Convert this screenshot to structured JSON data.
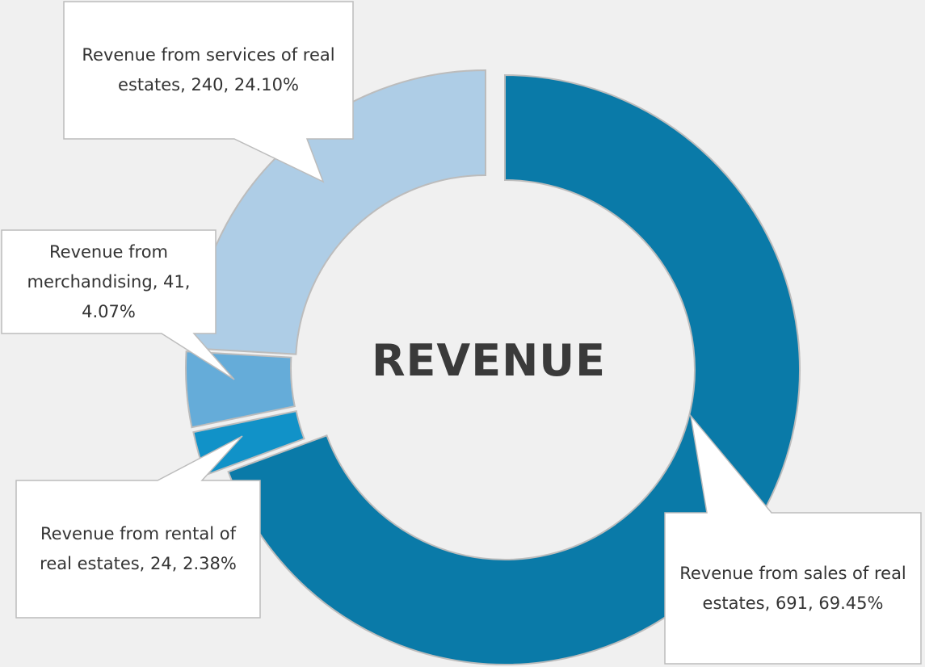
{
  "chart_data": {
    "type": "donut",
    "title": "REVENUE",
    "values": [
      691,
      24,
      41,
      240
    ],
    "value_labels": [
      "Revenue from sales of real estates, 691, 69.45%",
      "Revenue from rental of real estates, 24, 2.38%",
      "Revenue from merchandising, 41, 4.07%",
      "Revenue from services of real estates, 240, 24.10%"
    ],
    "colors": [
      "#0a7aa8",
      "#1192c8",
      "#65acd9",
      "#aecde6"
    ]
  }
}
